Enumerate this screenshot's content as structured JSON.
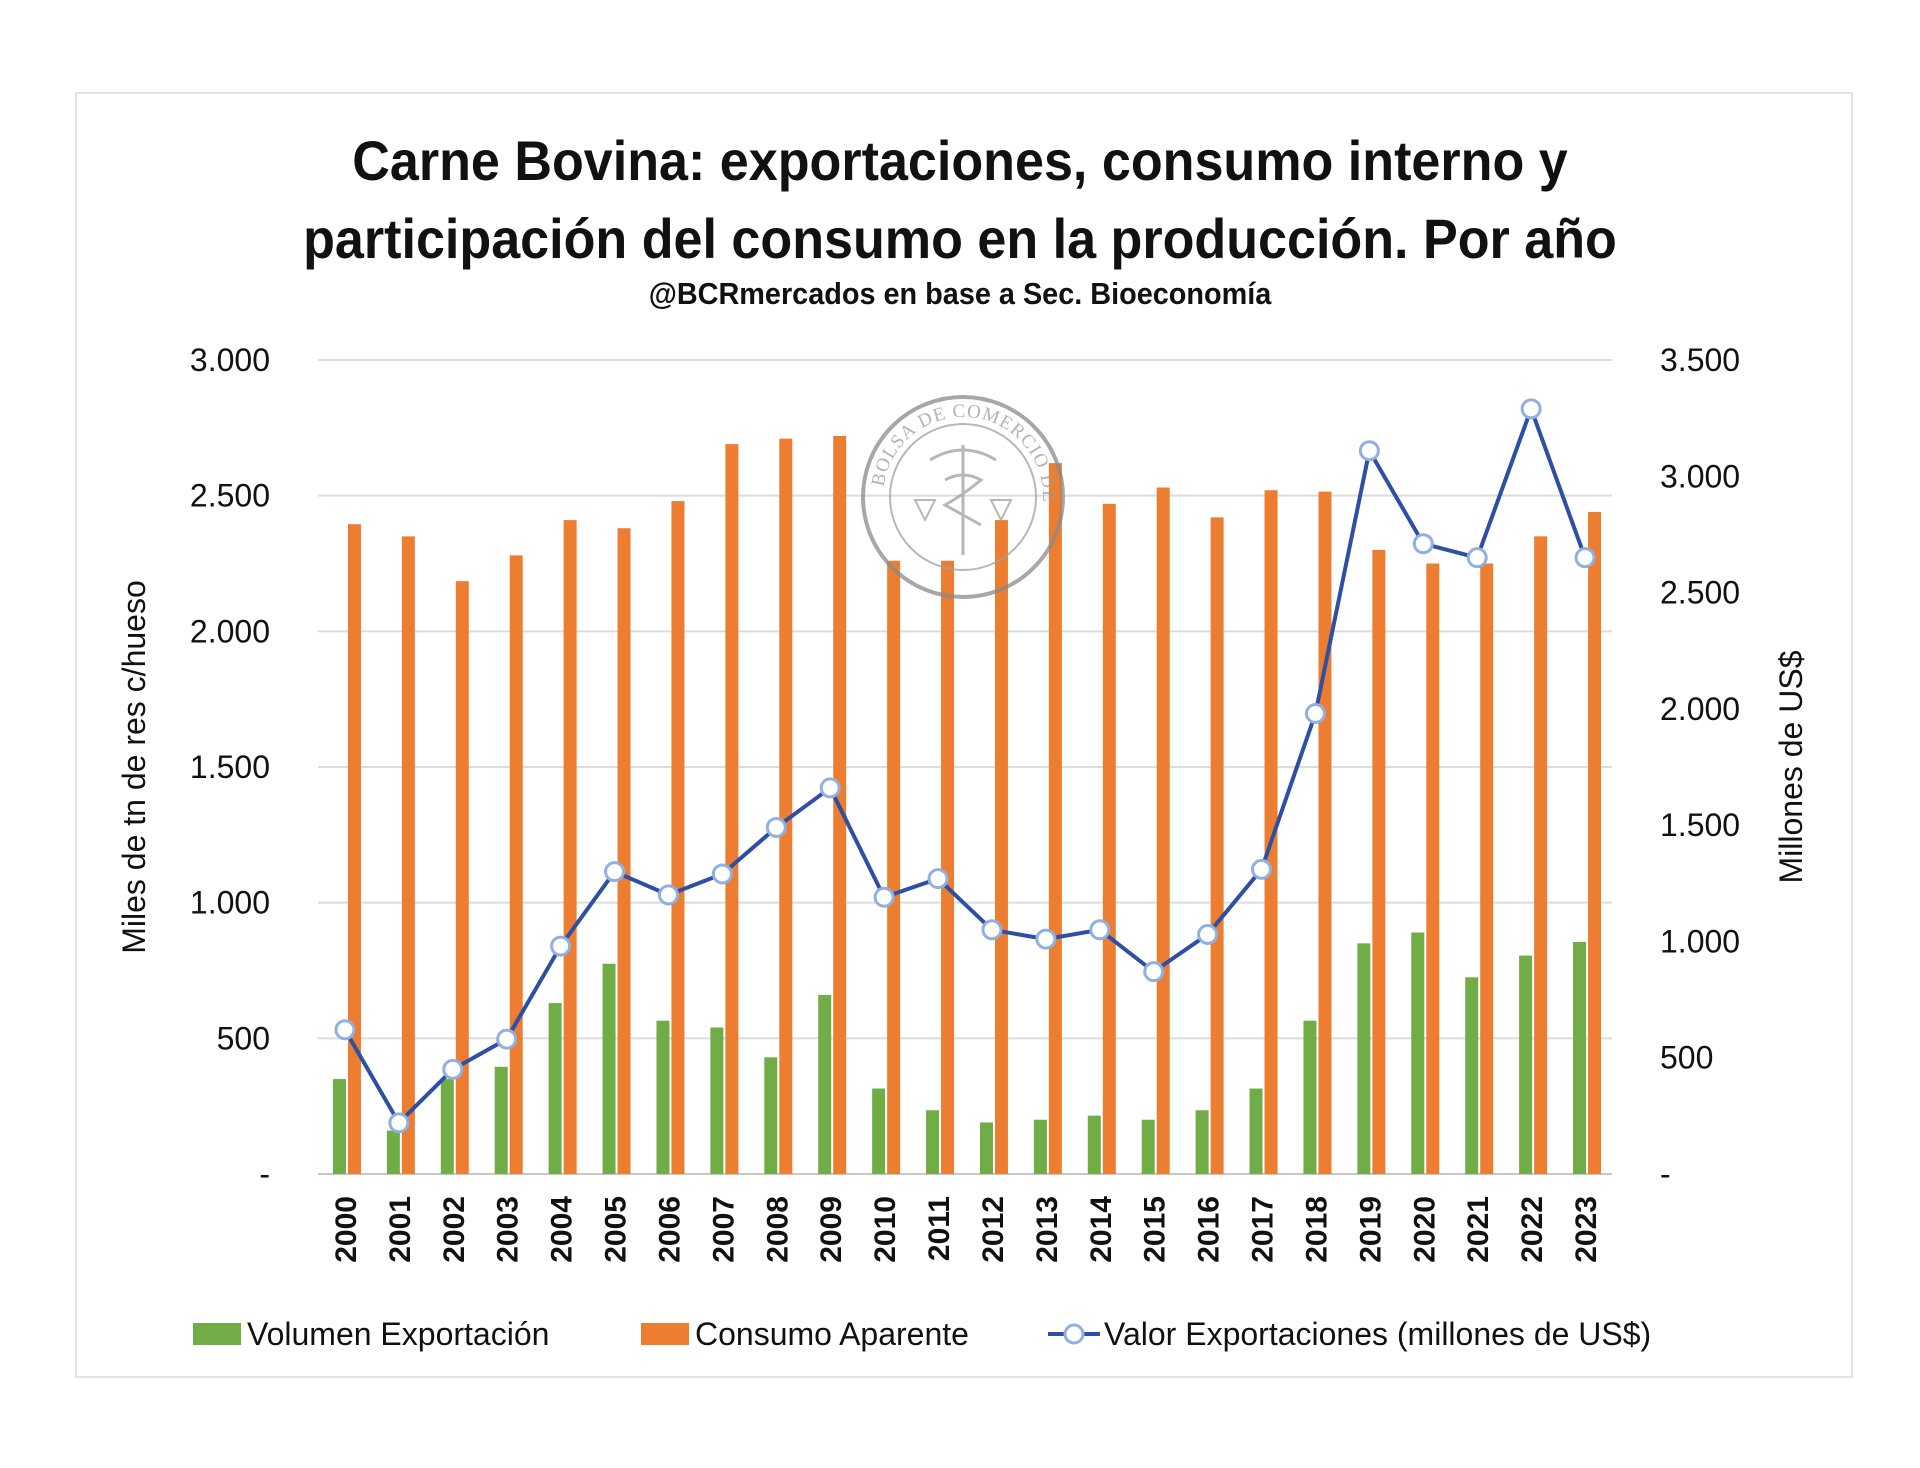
{
  "chart_data": {
    "type": "bar",
    "title_lines": [
      "Carne Bovina: exportaciones, consumo interno y",
      "participación del consumo en la producción. Por año"
    ],
    "subtitle": "@BCRmercados  en base a Sec. Bioeconomía",
    "ylabel": "Miles de tn de res c/hueso",
    "y2label": "Millones de US$",
    "ylim": [
      0,
      3000
    ],
    "y2lim": [
      0,
      3500
    ],
    "yticks": [
      "-",
      "500",
      "1.000",
      "1.500",
      "2.000",
      "2.500",
      "3.000"
    ],
    "y2ticks": [
      "-",
      "500",
      "1.000",
      "1.500",
      "2.000",
      "2.500",
      "3.000",
      "3.500"
    ],
    "grid": true,
    "legend_position": "bottom",
    "categories": [
      "2000",
      "2001",
      "2002",
      "2003",
      "2004",
      "2005",
      "2006",
      "2007",
      "2008",
      "2009",
      "2010",
      "2011",
      "2012",
      "2013",
      "2014",
      "2015",
      "2016",
      "2017",
      "2018",
      "2019",
      "2020",
      "2021",
      "2022",
      "2023"
    ],
    "series": [
      {
        "name": "Volumen Exportación",
        "type": "bar",
        "axis": "left",
        "color": "#70ad47",
        "values": [
          350,
          160,
          350,
          395,
          630,
          775,
          565,
          540,
          430,
          660,
          315,
          235,
          190,
          200,
          215,
          200,
          235,
          315,
          565,
          850,
          890,
          725,
          805,
          855
        ]
      },
      {
        "name": "Consumo Aparente",
        "type": "bar",
        "axis": "left",
        "color": "#ed7d31",
        "values": [
          2395,
          2350,
          2185,
          2280,
          2410,
          2380,
          2480,
          2690,
          2710,
          2720,
          2260,
          2260,
          2410,
          2620,
          2470,
          2530,
          2420,
          2520,
          2515,
          2300,
          2250,
          2250,
          2350,
          2440
        ]
      },
      {
        "name": "Valor Exportaciones (millones de US$)",
        "type": "line",
        "axis": "right",
        "color": "#2e4fa3",
        "values": [
          620,
          220,
          450,
          580,
          980,
          1300,
          1200,
          1290,
          1490,
          1660,
          1190,
          1270,
          1050,
          1010,
          1050,
          870,
          1030,
          1310,
          1980,
          3110,
          2710,
          2650,
          3290,
          2650
        ]
      }
    ]
  }
}
